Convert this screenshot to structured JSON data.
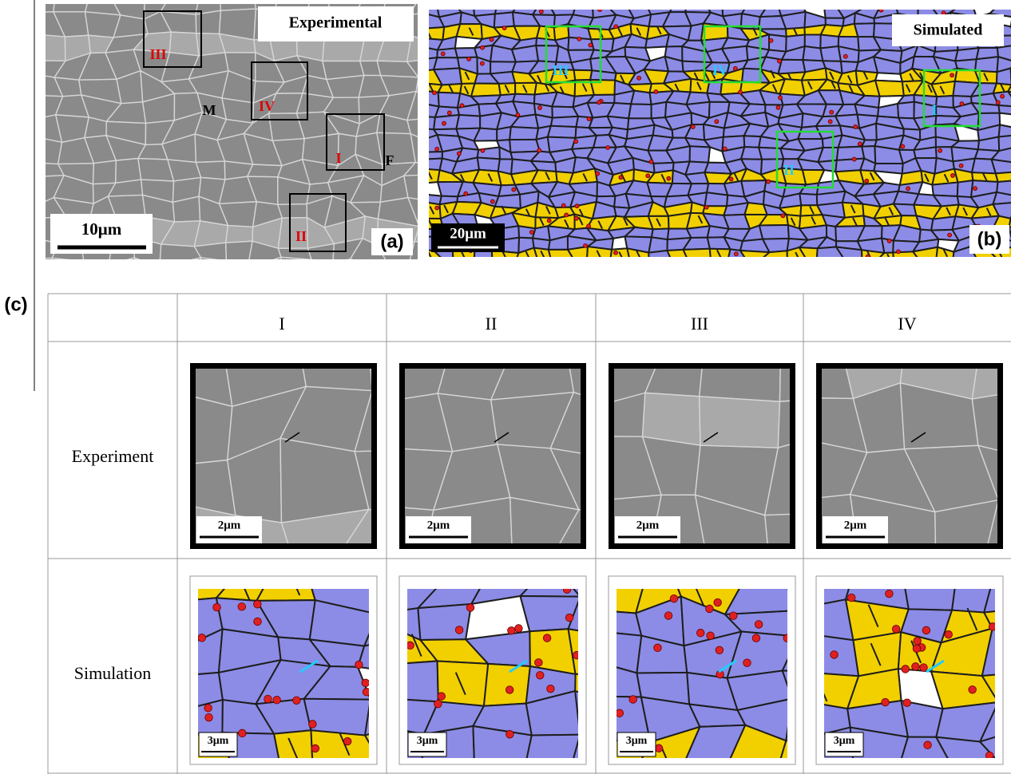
{
  "panel_a": {
    "inset_label": "Experimental",
    "regions": [
      "III",
      "IV",
      "I",
      "II"
    ],
    "phase_labels": [
      "M",
      "F"
    ],
    "scale_bar": "10μm",
    "panel_label": "(a)"
  },
  "panel_b": {
    "inset_label": "Simulated",
    "regions": [
      "III",
      "IV",
      "I",
      "II"
    ],
    "scale_bar": "20μm",
    "panel_label": "(b)"
  },
  "panel_c": {
    "panel_label": "(c)",
    "columns": [
      "I",
      "II",
      "III",
      "IV"
    ],
    "rows": [
      {
        "label": "Experiment",
        "scale_bars": [
          "2μm",
          "2μm",
          "2μm",
          "2μm"
        ]
      },
      {
        "label": "Simulation",
        "scale_bars": [
          "3μm",
          "3μm",
          "3μm",
          "3μm"
        ]
      }
    ]
  }
}
